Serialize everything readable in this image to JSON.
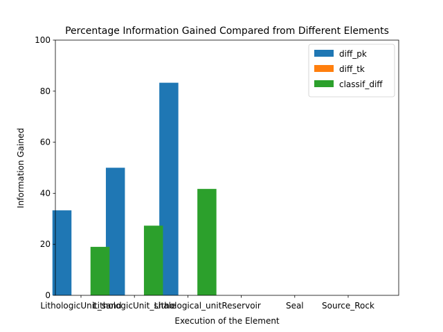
{
  "chart_data": {
    "type": "bar",
    "title": "Percentage Information Gained Compared from Different Elements",
    "xlabel": "Execution of the Element",
    "ylabel": "Information Gained",
    "categories": [
      "LithologicUnit_sand",
      "LithologicUnit_shale",
      "Lithological_unit",
      "Reservoir",
      "Seal",
      "Source_Rock"
    ],
    "ylim": [
      0,
      100
    ],
    "yticks": [
      0,
      20,
      40,
      60,
      80,
      100
    ],
    "series": [
      {
        "name": "diff_pk",
        "color": "#1f77b4",
        "values": [
          33.3,
          50.0,
          83.3,
          0,
          0,
          0
        ]
      },
      {
        "name": "diff_tk",
        "color": "#ff7f0e",
        "values": [
          0,
          0,
          0,
          0,
          0,
          0
        ]
      },
      {
        "name": "classif_diff",
        "color": "#2ca02c",
        "values": [
          19.0,
          27.3,
          41.7,
          0,
          0,
          0
        ]
      }
    ],
    "legend_position": "top-right",
    "grid": false
  }
}
